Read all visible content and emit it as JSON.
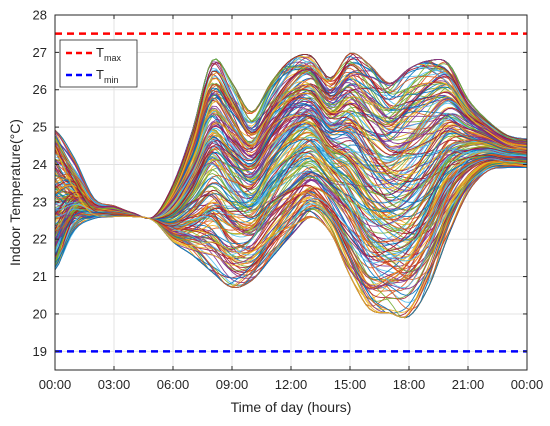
{
  "chart_data": {
    "type": "line",
    "title": "",
    "xlabel": "Time of day (hours)",
    "ylabel": "Indoor Temperature(°C)",
    "xlim": [
      0,
      24
    ],
    "ylim": [
      18.5,
      28
    ],
    "grid": true,
    "legend_position": "top-left",
    "x_ticks": [
      {
        "value": 0,
        "label": "00:00"
      },
      {
        "value": 3,
        "label": "03:00"
      },
      {
        "value": 6,
        "label": "06:00"
      },
      {
        "value": 9,
        "label": "09:00"
      },
      {
        "value": 12,
        "label": "12:00"
      },
      {
        "value": 15,
        "label": "15:00"
      },
      {
        "value": 18,
        "label": "18:00"
      },
      {
        "value": 21,
        "label": "21:00"
      },
      {
        "value": 24,
        "label": "00:00"
      }
    ],
    "y_ticks": [
      {
        "value": 19,
        "label": "19"
      },
      {
        "value": 20,
        "label": "20"
      },
      {
        "value": 21,
        "label": "21"
      },
      {
        "value": 22,
        "label": "22"
      },
      {
        "value": 23,
        "label": "23"
      },
      {
        "value": 24,
        "label": "24"
      },
      {
        "value": 25,
        "label": "25"
      },
      {
        "value": 26,
        "label": "26"
      },
      {
        "value": 27,
        "label": "27"
      },
      {
        "value": 28,
        "label": "28"
      }
    ],
    "reference_lines": [
      {
        "name": "T",
        "subscript": "max",
        "value": 27.5,
        "color": "#ff0000",
        "style": "dashed"
      },
      {
        "name": "T",
        "subscript": "min",
        "value": 19,
        "color": "#0000ff",
        "style": "dashed"
      }
    ],
    "series_palette": [
      "#0072bd",
      "#d95319",
      "#edb120",
      "#7e2f8e",
      "#77ac30",
      "#4dbeee",
      "#a2142f"
    ],
    "envelope_x": [
      0,
      1,
      2,
      3,
      4,
      5,
      6,
      7,
      8,
      9,
      10,
      11,
      12,
      13,
      14,
      15,
      16,
      17,
      18,
      19,
      20,
      21,
      22,
      23,
      24
    ],
    "envelope_upper": [
      25.0,
      24.2,
      23.1,
      22.9,
      22.7,
      22.6,
      23.5,
      25.0,
      26.9,
      26.3,
      25.5,
      26.3,
      26.9,
      27.0,
      26.4,
      27.1,
      26.8,
      26.3,
      26.7,
      26.9,
      26.8,
      25.8,
      25.2,
      24.8,
      24.7
    ],
    "envelope_lower": [
      21.1,
      22.1,
      22.5,
      22.6,
      22.6,
      22.5,
      21.9,
      21.5,
      21.0,
      20.6,
      20.8,
      21.4,
      22.0,
      22.5,
      22.1,
      20.9,
      20.0,
      19.9,
      19.8,
      20.6,
      22.0,
      23.2,
      23.8,
      23.9,
      23.9
    ]
  }
}
